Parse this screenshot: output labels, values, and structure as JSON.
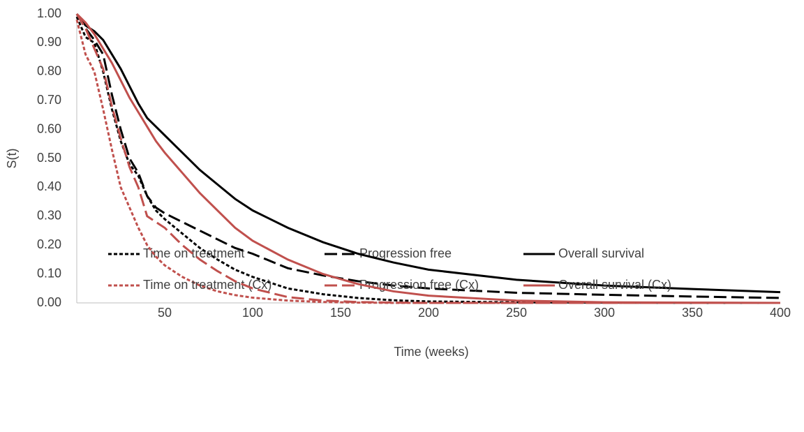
{
  "chart_data": {
    "type": "line",
    "ylabel": "S(t)",
    "xlabel": "Time (weeks)",
    "x": [
      0,
      5,
      10,
      15,
      20,
      25,
      30,
      35,
      40,
      45,
      50,
      60,
      70,
      80,
      90,
      100,
      120,
      140,
      160,
      180,
      200,
      250,
      300,
      350,
      400
    ],
    "xlim": [
      0,
      400
    ],
    "xticks": [
      50,
      100,
      150,
      200,
      250,
      300,
      350,
      400
    ],
    "ylim": [
      0,
      1
    ],
    "yticks": [
      {
        "value": 0,
        "label": "0.00"
      },
      {
        "value": 0.1,
        "label": "0.10"
      },
      {
        "value": 0.2,
        "label": "0.20"
      },
      {
        "value": 0.3,
        "label": "0.30"
      },
      {
        "value": 0.4,
        "label": "0.40"
      },
      {
        "value": 0.5,
        "label": "0.50"
      },
      {
        "value": 0.6,
        "label": "0.60"
      },
      {
        "value": 0.7,
        "label": "0.70"
      },
      {
        "value": 0.8,
        "label": "0.80"
      },
      {
        "value": 0.9,
        "label": "0.90"
      },
      {
        "value": 1,
        "label": "1.00"
      }
    ],
    "grid": false,
    "legend": "bottom",
    "series": [
      {
        "name": "Time on treatment",
        "color": "#000000",
        "dash": "short",
        "values": [
          0.99,
          0.92,
          0.9,
          0.8,
          0.67,
          0.56,
          0.48,
          0.44,
          0.37,
          0.32,
          0.29,
          0.24,
          0.19,
          0.15,
          0.115,
          0.09,
          0.05,
          0.03,
          0.017,
          0.009,
          0.005,
          0.002,
          0.001,
          0,
          0
        ]
      },
      {
        "name": "Progression free",
        "color": "#000000",
        "dash": "long",
        "values": [
          1,
          0.95,
          0.91,
          0.86,
          0.72,
          0.6,
          0.5,
          0.45,
          0.37,
          0.33,
          0.31,
          0.28,
          0.25,
          0.22,
          0.19,
          0.17,
          0.12,
          0.095,
          0.075,
          0.06,
          0.05,
          0.035,
          0.028,
          0.022,
          0.017
        ]
      },
      {
        "name": "Overall survival",
        "color": "#000000",
        "dash": "solid",
        "values": [
          1,
          0.96,
          0.94,
          0.91,
          0.86,
          0.81,
          0.75,
          0.69,
          0.64,
          0.61,
          0.58,
          0.52,
          0.46,
          0.41,
          0.36,
          0.32,
          0.26,
          0.21,
          0.17,
          0.14,
          0.115,
          0.08,
          0.06,
          0.048,
          0.037
        ]
      },
      {
        "name": "Time on treatment (Cx)",
        "color": "#c0504d",
        "dash": "short",
        "values": [
          0.98,
          0.86,
          0.8,
          0.67,
          0.53,
          0.4,
          0.33,
          0.26,
          0.2,
          0.16,
          0.13,
          0.09,
          0.06,
          0.04,
          0.027,
          0.018,
          0.008,
          0.003,
          0.001,
          0,
          0,
          0,
          0,
          0,
          0
        ]
      },
      {
        "name": "Progression free (Cx)",
        "color": "#c0504d",
        "dash": "long",
        "values": [
          1,
          0.95,
          0.88,
          0.81,
          0.68,
          0.57,
          0.47,
          0.4,
          0.3,
          0.28,
          0.26,
          0.2,
          0.15,
          0.11,
          0.075,
          0.05,
          0.02,
          0.008,
          0.003,
          0.001,
          0,
          0,
          0,
          0,
          0
        ]
      },
      {
        "name": "Overall survival (Cx)",
        "color": "#c0504d",
        "dash": "solid",
        "values": [
          1,
          0.97,
          0.93,
          0.88,
          0.83,
          0.77,
          0.71,
          0.66,
          0.61,
          0.56,
          0.52,
          0.45,
          0.38,
          0.32,
          0.26,
          0.215,
          0.15,
          0.1,
          0.065,
          0.04,
          0.025,
          0.008,
          0.002,
          0.001,
          0
        ]
      }
    ]
  }
}
